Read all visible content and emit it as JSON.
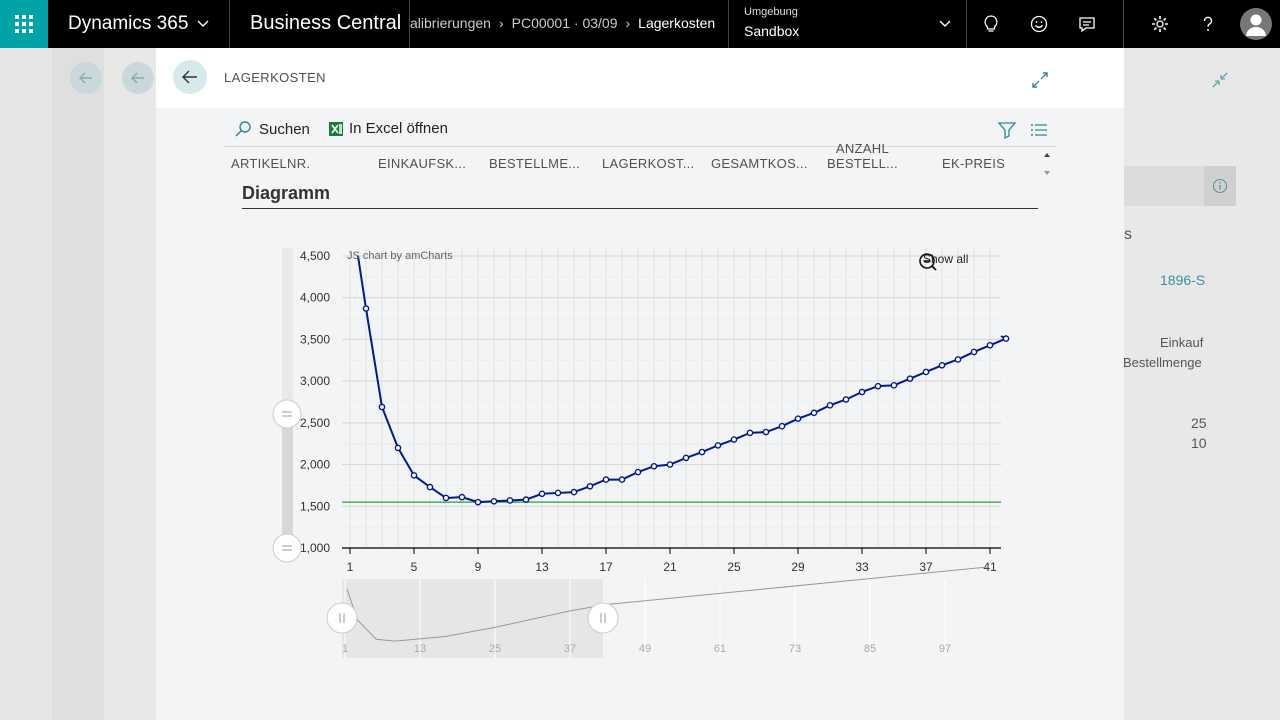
{
  "topbar": {
    "app_name": "Dynamics 365",
    "product": "Business Central",
    "breadcrumbs": [
      "alibrierungen",
      "PC00001 · 03/09",
      "Lagerkosten"
    ],
    "env_label": "Umgebung",
    "env_value": "Sandbox"
  },
  "background": {
    "item_no": "1896-S",
    "letter": "s",
    "field1": "Einkauf",
    "field2": "Bestellmenge",
    "num1": "25",
    "num2": "10"
  },
  "dialog": {
    "title": "LAGERKOSTEN",
    "toolbar": {
      "search_label": "Suchen",
      "excel_label": "In Excel öffnen"
    },
    "columns": [
      {
        "l1": "ARTIKELNR.",
        "l2": ""
      },
      {
        "l1": "EINKAUFSK...",
        "l2": ""
      },
      {
        "l1": "BESTELLME...",
        "l2": ""
      },
      {
        "l1": "LAGERKOST...",
        "l2": ""
      },
      {
        "l1": "GESAMTKOS...",
        "l2": ""
      },
      {
        "l1": "ANZAHL",
        "l2": "BESTELL..."
      },
      {
        "l1": "EK-PREIS",
        "l2": ""
      }
    ],
    "section_title": "Diagramm"
  },
  "chart_data": {
    "type": "line",
    "credit": "JS chart by amCharts",
    "show_all_label": "Show all",
    "x_ticks": [
      "1",
      "5",
      "9",
      "13",
      "17",
      "21",
      "25",
      "29",
      "33",
      "37",
      "41"
    ],
    "y_ticks": [
      "1,000",
      "1,500",
      "2,000",
      "2,500",
      "3,000",
      "3,500",
      "4,000",
      "4,500"
    ],
    "ylim": [
      1000,
      4500
    ],
    "xlim": [
      1,
      43
    ],
    "grid": true,
    "series": [
      {
        "x": [
          2,
          3,
          4,
          5,
          6,
          7,
          8,
          9,
          10,
          11,
          12,
          13,
          14,
          15,
          16,
          17,
          18,
          19,
          20,
          21,
          22,
          23,
          24,
          25,
          26,
          27,
          28,
          29,
          30,
          31,
          32,
          33,
          34,
          35,
          36,
          37,
          38,
          39,
          40,
          41,
          42
        ],
        "values": [
          3870,
          2690,
          2200,
          1870,
          1730,
          1600,
          1610,
          1550,
          1560,
          1570,
          1580,
          1650,
          1660,
          1670,
          1740,
          1820,
          1820,
          1910,
          1980,
          2000,
          2080,
          2150,
          2230,
          2300,
          2380,
          2390,
          2460,
          2550,
          2620,
          2710,
          2780,
          2870,
          2940,
          2950,
          3030,
          3110,
          3190,
          3260,
          3350,
          3430,
          3510
        ],
        "start": {
          "x": 1.5,
          "y": 4500
        },
        "end": {
          "x": 43,
          "y": 3540
        }
      }
    ],
    "reference_line": 1550,
    "scrollbar_ticks": [
      "1",
      "13",
      "25",
      "37",
      "49",
      "61",
      "73",
      "85",
      "97"
    ],
    "colors": {
      "line": "#001a8c",
      "reference": "#2e9e3a"
    }
  }
}
